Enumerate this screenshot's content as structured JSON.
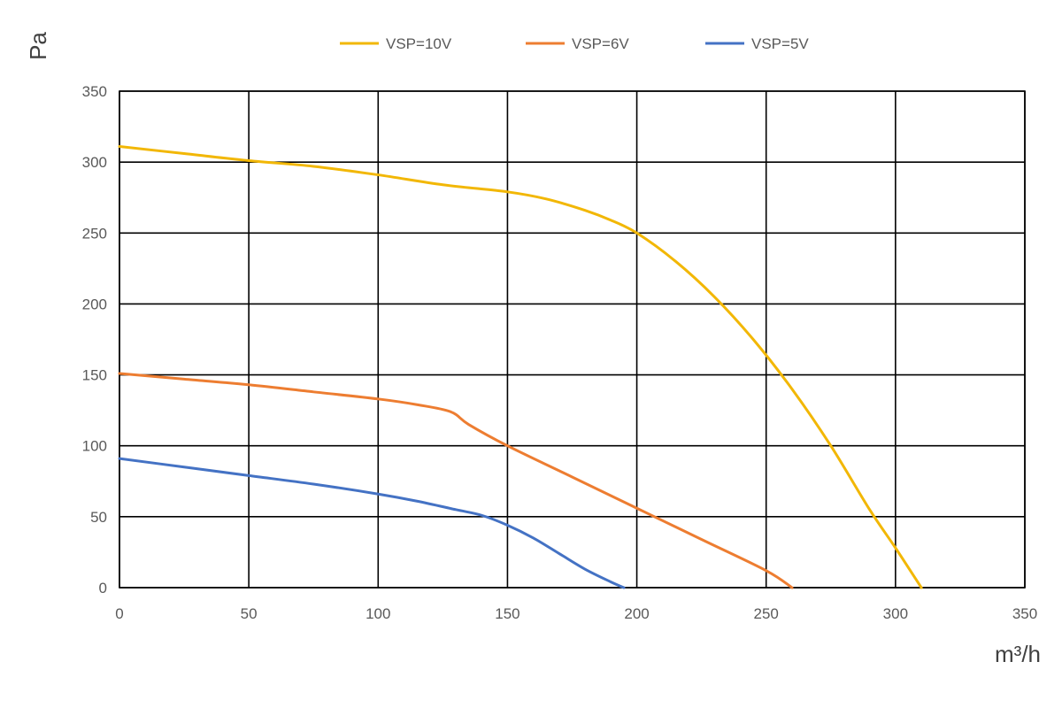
{
  "chart_data": {
    "type": "line",
    "title": "",
    "xlabel": "m³/h",
    "ylabel": "Pa",
    "xlim": [
      0,
      350
    ],
    "ylim": [
      0,
      350
    ],
    "xticks": [
      0,
      50,
      100,
      150,
      200,
      250,
      300,
      350
    ],
    "yticks": [
      0,
      50,
      100,
      150,
      200,
      250,
      300,
      350
    ],
    "grid": true,
    "legend_position": "top",
    "series": [
      {
        "name": "VSP=10V",
        "color": "#f2b705",
        "x": [
          0,
          25,
          50,
          75,
          100,
          125,
          150,
          165,
          180,
          190,
          200,
          215,
          230,
          245,
          260,
          275,
          290,
          300,
          310
        ],
        "y": [
          311,
          306,
          301,
          297,
          291,
          284,
          279,
          274,
          266,
          259,
          250,
          230,
          205,
          175,
          140,
          100,
          55,
          28,
          0
        ]
      },
      {
        "name": "VSP=6V",
        "color": "#ed7d31",
        "x": [
          0,
          25,
          50,
          75,
          100,
          115,
          128,
          135,
          150,
          175,
          200,
          225,
          250,
          260
        ],
        "y": [
          151,
          147,
          143,
          138,
          133,
          129,
          124,
          115,
          100,
          78,
          56,
          34,
          12,
          0
        ]
      },
      {
        "name": "VSP=5V",
        "color": "#4472c4",
        "x": [
          0,
          25,
          50,
          75,
          100,
          115,
          130,
          140,
          150,
          160,
          170,
          180,
          190,
          195
        ],
        "y": [
          91,
          85,
          79,
          73,
          66,
          61,
          55,
          51,
          44,
          35,
          24,
          13,
          4,
          0
        ]
      }
    ]
  }
}
